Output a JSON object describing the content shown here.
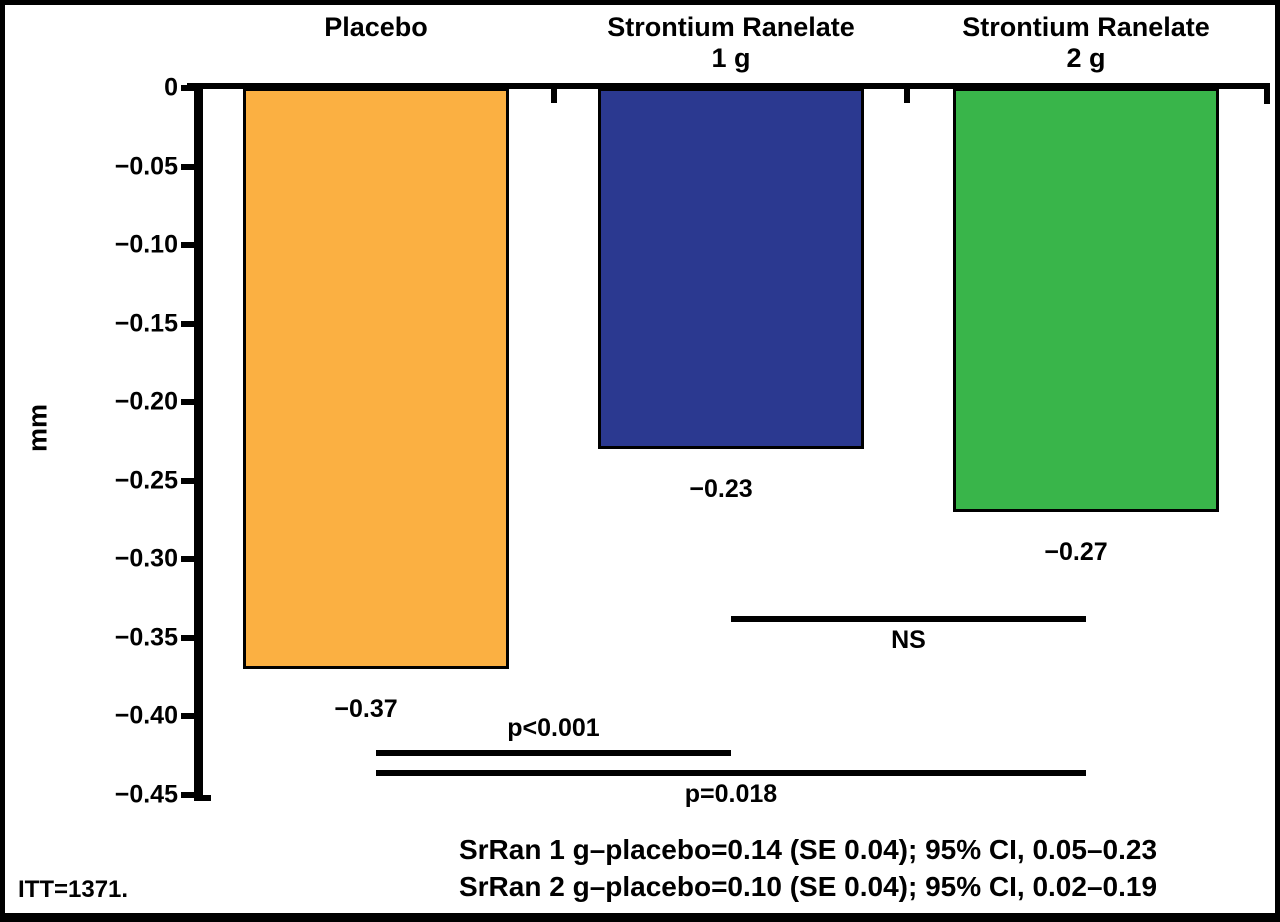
{
  "chart_data": {
    "type": "bar",
    "title": "",
    "ylabel": "mm",
    "ylim": [
      -0.45,
      0
    ],
    "grid": false,
    "yticks": [
      0,
      -0.05,
      -0.1,
      -0.15,
      -0.2,
      -0.25,
      -0.3,
      -0.35,
      -0.4,
      -0.45
    ],
    "ytick_labels": [
      "0",
      "−0.05",
      "−0.10",
      "−0.15",
      "−0.20",
      "−0.25",
      "−0.30",
      "−0.35",
      "−0.40",
      "−0.45"
    ],
    "categories": [
      "Placebo",
      "Strontium Ranelate 1 g",
      "Strontium Ranelate 2 g"
    ],
    "category_title_lines": [
      [
        "Placebo"
      ],
      [
        "Strontium Ranelate",
        "1 g"
      ],
      [
        "Strontium Ranelate",
        "2 g"
      ]
    ],
    "values": [
      -0.37,
      -0.23,
      -0.27
    ],
    "value_labels": [
      "−0.37",
      "−0.23",
      "−0.27"
    ],
    "bar_colors": [
      "#FBB042",
      "#2B3990",
      "#39B54A"
    ],
    "comparisons": [
      {
        "label": "NS",
        "between": [
          1,
          2
        ],
        "label_side": "below"
      },
      {
        "label": "p<0.001",
        "between": [
          0,
          1
        ],
        "label_side": "above"
      },
      {
        "label": "p=0.018",
        "between": [
          0,
          2
        ],
        "label_side": "below"
      }
    ],
    "annotations": [
      "SrRan 1 g–placebo=0.14 (SE 0.04); 95% CI, 0.05–0.23",
      "SrRan 2 g–placebo=0.10 (SE 0.04); 95% CI, 0.02–0.19"
    ],
    "footnote": "ITT=1371."
  }
}
